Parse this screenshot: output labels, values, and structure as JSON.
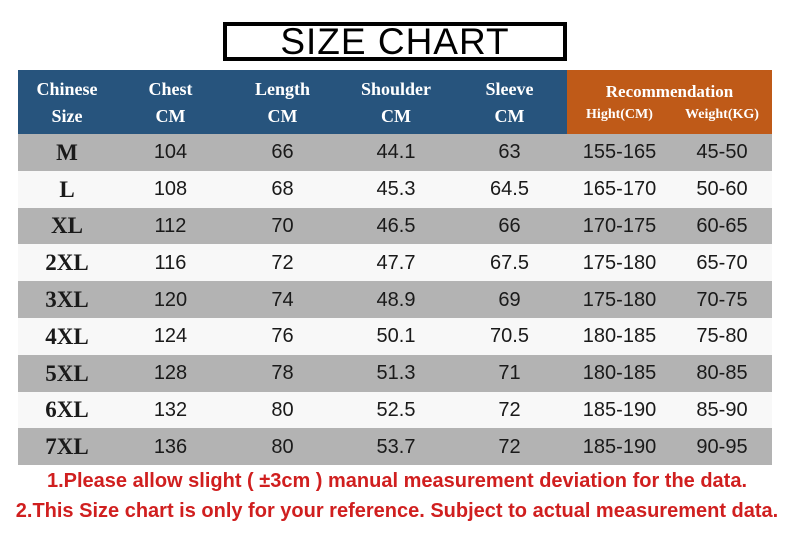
{
  "title": "SIZE CHART",
  "table": {
    "columns": [
      {
        "id": "chinese-size",
        "line1": "Chinese",
        "line2": "Size"
      },
      {
        "id": "chest",
        "line1": "Chest",
        "line2": "CM"
      },
      {
        "id": "length",
        "line1": "Length",
        "line2": "CM"
      },
      {
        "id": "shoulder",
        "line1": "Shoulder",
        "line2": "CM"
      },
      {
        "id": "sleeve",
        "line1": "Sleeve",
        "line2": "CM"
      }
    ],
    "recommendation": {
      "label": "Recommendation",
      "sub_columns": [
        "Hight(CM)",
        "Weight(KG)"
      ]
    },
    "rows": [
      {
        "size": "M",
        "chest": "104",
        "length": "66",
        "shoulder": "44.1",
        "sleeve": "63",
        "height": "155-165",
        "weight": "45-50"
      },
      {
        "size": "L",
        "chest": "108",
        "length": "68",
        "shoulder": "45.3",
        "sleeve": "64.5",
        "height": "165-170",
        "weight": "50-60"
      },
      {
        "size": "XL",
        "chest": "112",
        "length": "70",
        "shoulder": "46.5",
        "sleeve": "66",
        "height": "170-175",
        "weight": "60-65"
      },
      {
        "size": "2XL",
        "chest": "116",
        "length": "72",
        "shoulder": "47.7",
        "sleeve": "67.5",
        "height": "175-180",
        "weight": "65-70"
      },
      {
        "size": "3XL",
        "chest": "120",
        "length": "74",
        "shoulder": "48.9",
        "sleeve": "69",
        "height": "175-180",
        "weight": "70-75"
      },
      {
        "size": "4XL",
        "chest": "124",
        "length": "76",
        "shoulder": "50.1",
        "sleeve": "70.5",
        "height": "180-185",
        "weight": "75-80"
      },
      {
        "size": "5XL",
        "chest": "128",
        "length": "78",
        "shoulder": "51.3",
        "sleeve": "71",
        "height": "180-185",
        "weight": "80-85"
      },
      {
        "size": "6XL",
        "chest": "132",
        "length": "80",
        "shoulder": "52.5",
        "sleeve": "72",
        "height": "185-190",
        "weight": "85-90"
      },
      {
        "size": "7XL",
        "chest": "136",
        "length": "80",
        "shoulder": "53.7",
        "sleeve": "72",
        "height": "185-190",
        "weight": "90-95"
      }
    ]
  },
  "notes": [
    "1.Please allow slight ( ±3cm ) manual measurement deviation for the data.",
    "2.This Size chart is only for your reference. Subject to actual measurement data."
  ],
  "colors": {
    "header_blue": "#27547d",
    "header_orange": "#bf5a18",
    "row_gray": "#b3b3b3",
    "row_light": "#f8f8f8",
    "note_red": "#d01f1f"
  }
}
